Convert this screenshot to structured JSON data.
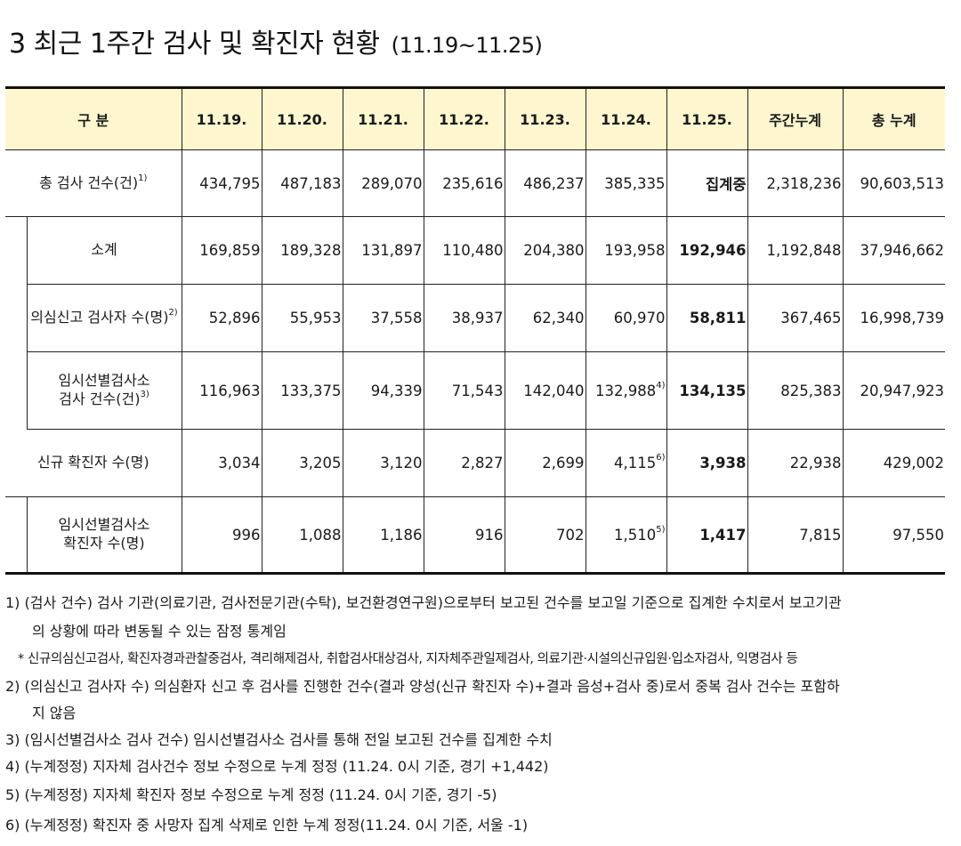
{
  "title": {
    "main": "3  최근 1주간 검사 및 확진자 현황",
    "range": "(11.19~11.25)"
  },
  "table": {
    "header_label": "구 분",
    "columns": [
      "11.19.",
      "11.20.",
      "11.21.",
      "11.22.",
      "11.23.",
      "11.24.",
      "11.25.",
      "주간누계",
      "총 누계"
    ],
    "rows": {
      "total_tests": {
        "label": "총 검사 건수(건)",
        "sup": "1)",
        "values": [
          "434,795",
          "487,183",
          "289,070",
          "235,616",
          "486,237",
          "385,335",
          "집계중",
          "2,318,236",
          "90,603,513"
        ]
      },
      "subtotal": {
        "label": "소계",
        "values": [
          "169,859",
          "189,328",
          "131,897",
          "110,480",
          "204,380",
          "193,958",
          "192,946",
          "1,192,848",
          "37,946,662"
        ]
      },
      "suspected": {
        "label": "의심신고 검사자 수(명)",
        "sup": "2)",
        "values": [
          "52,896",
          "55,953",
          "37,558",
          "38,937",
          "62,340",
          "60,970",
          "58,811",
          "367,465",
          "16,998,739"
        ]
      },
      "temp_site_tests": {
        "label_line1": "임시선별검사소",
        "label_line2": "검사 건수(건)",
        "sup": "3)",
        "values": [
          "116,963",
          "133,375",
          "94,339",
          "71,543",
          "142,040",
          "132,988",
          "134,135",
          "825,383",
          "20,947,923"
        ],
        "value_sup": "4)"
      },
      "new_cases": {
        "label": "신규 확진자 수(명)",
        "values": [
          "3,034",
          "3,205",
          "3,120",
          "2,827",
          "2,699",
          "4,115",
          "3,938",
          "22,938",
          "429,002"
        ],
        "value_sup": "6)"
      },
      "temp_site_cases": {
        "label_line1": "임시선별검사소",
        "label_line2": "확진자 수(명)",
        "values": [
          "996",
          "1,088",
          "1,186",
          "916",
          "702",
          "1,510",
          "1,417",
          "7,815",
          "97,550"
        ],
        "value_sup": "5)"
      }
    }
  },
  "notes": {
    "n1_line1": "1) (검사 건수) 검사 기관(의료기관, 검사전문기관(수탁), 보건환경연구원)으로부터 보고된 건수를 보고일 기준으로 집계한 수치로서 보고기관",
    "n1_line2": "의 상황에 따라 변동될 수 있는 잠정 통계임",
    "star": "* 신규의심신고검사, 확진자경과관찰중검사, 격리해제검사, 취합검사대상검사, 지자체주관일제검사, 의료기관·시설의신규입원·입소자검사, 익명검사 등",
    "n2_line1": "2) (의심신고 검사자 수) 의심환자 신고 후 검사를 진행한 건수(결과 양성(신규 확진자 수)+결과 음성+검사 중)로서 중복 검사 건수는 포함하",
    "n2_line2": "지 않음",
    "n3": "3) (임시선별검사소 검사 건수) 임시선별검사소 검사를 통해 전일 보고된 건수를 집계한 수치",
    "n4": "4) (누계정정) 지자체 검사건수 정보 수정으로 누계 정정 (11.24. 0시 기준, 경기 +1,442)",
    "n5": "5) (누계정정) 지자체 확진자 정보 수정으로 누계 정정 (11.24. 0시 기준, 경기 -5)",
    "n6": "6) (누계정정) 확진자 중 사망자 집계 삭제로 인한 누계 정정(11.24. 0시 기준, 서울 -1)"
  }
}
